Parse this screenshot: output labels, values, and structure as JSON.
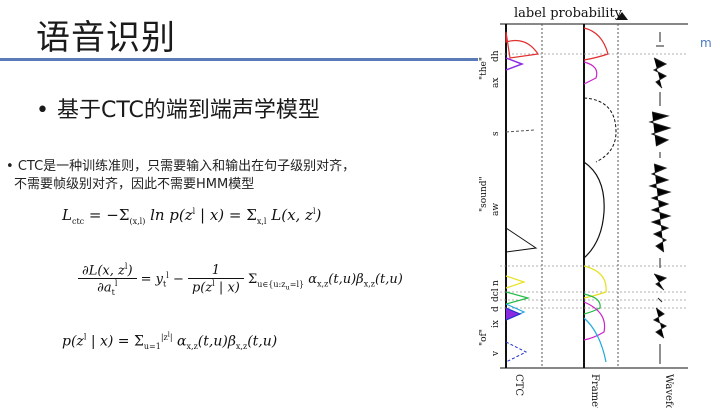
{
  "slide": {
    "title": "语音识别",
    "main_bullet": "基于CTC的端到端声学模型",
    "sub_bullet_line1": "CTC是一种训练准则，只需要输入和输出在句子级别对齐，",
    "sub_bullet_line2": "不需要帧级别对齐，因此不需要HMM模型",
    "corner_mark": "m"
  },
  "formulas": {
    "f1": "L_ctc = −Σ ln p(z^l | x) = Σ L(x, z^l)",
    "f2": "∂L(x,z^l)/∂a_t^l = y_t^l − 1/p(z^l|x) Σ α_x,z(t,u) β_x,z(t,u)",
    "f3": "p(z^l | x) = Σ α_x,z(t,u) β_x,z(t,u)"
  },
  "figure": {
    "header": "label probability",
    "column_labels": [
      "CTC",
      "Framewise",
      "Waveform"
    ],
    "phone_labels": [
      "dh",
      "ax",
      "s",
      "aw",
      "n",
      "dcl",
      "d",
      "ix",
      "v"
    ],
    "word_labels": [
      "\"the\"",
      "\"sound\"",
      "\"of\""
    ],
    "colors": {
      "accent": "#5b7ab8",
      "red": "#e23030",
      "purple": "#8a2be2",
      "yellow": "#e8e020",
      "green": "#22bb44",
      "magenta": "#cc22cc",
      "cyan": "#22aadd",
      "blue": "#2233cc"
    }
  }
}
